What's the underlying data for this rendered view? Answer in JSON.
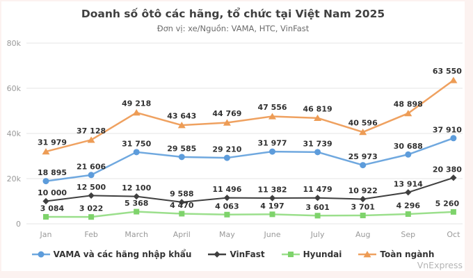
{
  "page": {
    "background": "#fcf2f0",
    "card_background": "#ffffff",
    "attribution": "VnExpress"
  },
  "chart_data": {
    "type": "line",
    "title": "Doanh số ôtô các hãng, tổ chức tại Việt Nam 2025",
    "subtitle": "Đơn vị: xe/Nguồn: VAMA, HTC, VinFast",
    "categories": [
      "Jan",
      "Feb",
      "March",
      "April",
      "May",
      "June",
      "July",
      "Aug",
      "Sep",
      "Oct"
    ],
    "series": [
      {
        "key": "vama",
        "name": "VAMA và các hãng nhập khẩu",
        "marker": "circle",
        "color": "#5D9CDB",
        "line_color": "#6FA8DF",
        "line_width": 2.5,
        "values": [
          18895,
          21606,
          31750,
          29585,
          29210,
          31977,
          31739,
          25973,
          30688,
          37910
        ]
      },
      {
        "key": "vinfast",
        "name": "VinFast",
        "marker": "diamond",
        "color": "#3F3F3F",
        "line_color": "#3F3F3F",
        "line_width": 2,
        "values": [
          10000,
          12500,
          12100,
          9588,
          11496,
          11382,
          11479,
          10922,
          13914,
          20380
        ]
      },
      {
        "key": "hyundai",
        "name": "Hyundai",
        "marker": "square",
        "color": "#7ED36B",
        "line_color": "#9BDF8C",
        "line_width": 2.5,
        "values": [
          3084,
          3022,
          5368,
          4470,
          4063,
          4197,
          3601,
          3701,
          4296,
          5260
        ]
      },
      {
        "key": "toan-nganh",
        "name": "Toàn ngành",
        "marker": "triangle",
        "color": "#ED9C55",
        "line_color": "#EFA160",
        "line_width": 2.5,
        "values": [
          31979,
          37128,
          49218,
          43643,
          44769,
          47556,
          46819,
          40596,
          48898,
          63550
        ]
      }
    ],
    "ylim": [
      0,
      80000
    ],
    "ytick_step": 20000,
    "ytick_labels": [
      "0",
      "20k",
      "40k",
      "60k",
      "80k"
    ],
    "grid": "on",
    "legend_position": "bottom",
    "grid_color": "#e6e6e6",
    "axis_label_color": "#999999",
    "data_label_color": "#303030"
  }
}
